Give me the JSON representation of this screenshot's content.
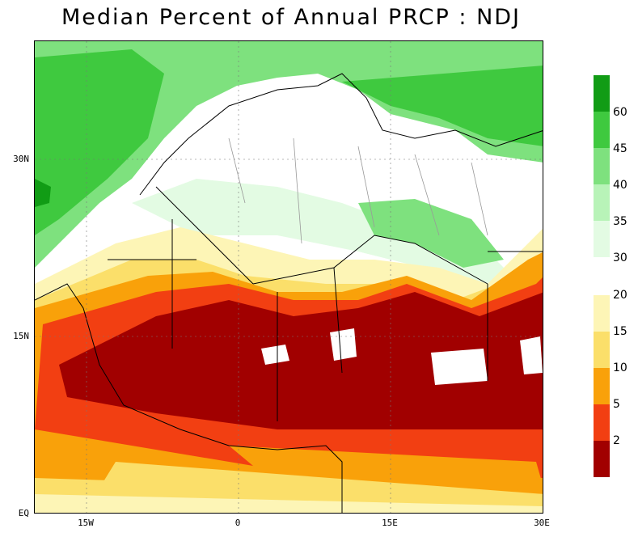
{
  "title": "Median Percent of Annual PRCP   :  NDJ",
  "axes": {
    "y_ticks": [
      {
        "label": "30N",
        "lat": 30
      },
      {
        "label": "15N",
        "lat": 15
      },
      {
        "label": "EQ",
        "lat": 0
      }
    ],
    "x_ticks": [
      {
        "label": "15W",
        "lon": -15
      },
      {
        "label": "0",
        "lon": 0
      },
      {
        "label": "15E",
        "lon": 15
      },
      {
        "label": "30E",
        "lon": 30
      }
    ],
    "lon_range": [
      -20,
      30
    ],
    "lat_range": [
      0,
      40
    ]
  },
  "legend": {
    "upper": [
      {
        "label": "60",
        "color": "#119c15"
      },
      {
        "label": "45",
        "color": "#3fc93f"
      },
      {
        "label": "40",
        "color": "#7ee17e"
      },
      {
        "label": "35",
        "color": "#b8f3b8"
      },
      {
        "label": "30",
        "color": "#e3fbe3"
      }
    ],
    "lower": [
      {
        "label": "20",
        "color": "#fdf5b6"
      },
      {
        "label": "15",
        "color": "#fbdf6a"
      },
      {
        "label": "10",
        "color": "#f9a10a"
      },
      {
        "label": "5",
        "color": "#f23f12"
      },
      {
        "label": "2",
        "color": "#a10000"
      }
    ]
  }
}
